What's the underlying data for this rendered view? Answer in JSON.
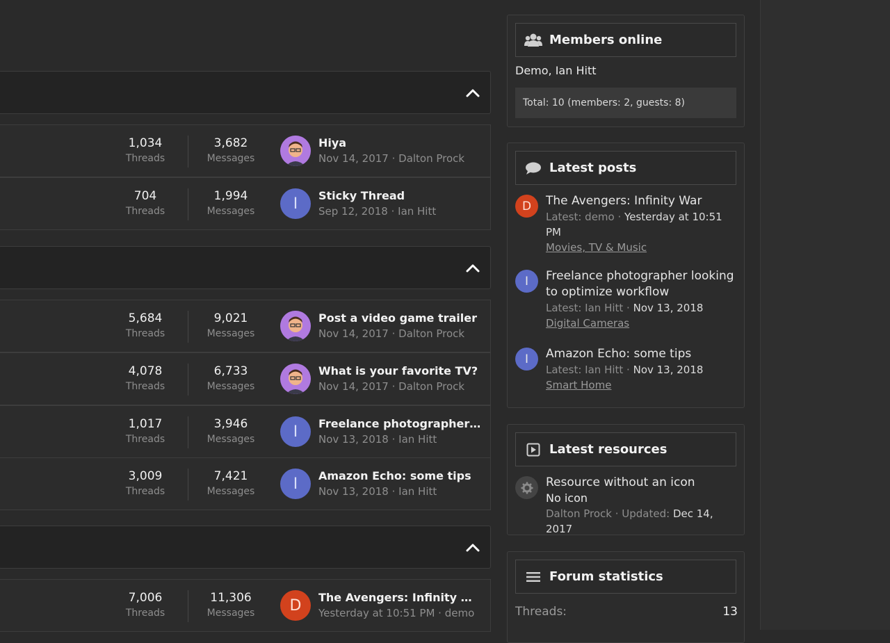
{
  "categories": [
    {
      "nodes": [
        {
          "threads_count": "1,034",
          "threads_label": "Threads",
          "messages_count": "3,682",
          "messages_label": "Messages",
          "avatar": "photo",
          "avatar_letter": "",
          "last_title": "Hiya",
          "last_meta": "Nov 14, 2017 · Dalton Prock"
        },
        {
          "threads_count": "704",
          "threads_label": "Threads",
          "messages_count": "1,994",
          "messages_label": "Messages",
          "avatar": "I",
          "avatar_letter": "I",
          "last_title": "Sticky Thread",
          "last_meta": "Sep 12, 2018 · Ian Hitt"
        }
      ]
    },
    {
      "nodes": [
        {
          "threads_count": "5,684",
          "threads_label": "Threads",
          "messages_count": "9,021",
          "messages_label": "Messages",
          "avatar": "photo",
          "avatar_letter": "",
          "last_title": "Post a video game trailer",
          "last_meta": "Nov 14, 2017 · Dalton Prock"
        },
        {
          "threads_count": "4,078",
          "threads_label": "Threads",
          "messages_count": "6,733",
          "messages_label": "Messages",
          "avatar": "photo",
          "avatar_letter": "",
          "last_title": "What is your favorite TV?",
          "last_meta": "Nov 14, 2017 · Dalton Prock"
        },
        {
          "threads_count": "1,017",
          "threads_label": "Threads",
          "messages_count": "3,946",
          "messages_label": "Messages",
          "avatar": "I",
          "avatar_letter": "I",
          "last_title": "Freelance photographer lo...",
          "last_meta": "Nov 13, 2018 · Ian Hitt"
        },
        {
          "threads_count": "3,009",
          "threads_label": "Threads",
          "messages_count": "7,421",
          "messages_label": "Messages",
          "avatar": "I",
          "avatar_letter": "I",
          "last_title": "Amazon Echo: some tips",
          "last_meta": "Nov 13, 2018 · Ian Hitt"
        }
      ]
    },
    {
      "nodes": [
        {
          "threads_count": "7,006",
          "threads_label": "Threads",
          "messages_count": "11,306",
          "messages_label": "Messages",
          "avatar": "D",
          "avatar_letter": "D",
          "last_title": "The Avengers: Infinity War",
          "last_meta": "Yesterday at 10:51 PM · demo"
        }
      ]
    }
  ],
  "collapse_icon": "chevron-up-icon",
  "sidebar": {
    "members_online": {
      "title": "Members online",
      "icon": "users-icon",
      "names": "Demo, Ian Hitt",
      "total": "Total: 10 (members: 2, guests: 8)"
    },
    "latest_posts": {
      "title": "Latest posts",
      "icon": "comment-icon",
      "items": [
        {
          "avatar_letter": "D",
          "title_line1": "The Avengers: Infinity War",
          "title_line2": "",
          "latest_prefix": "Latest: demo · ",
          "latest_date": "Yesterday at 10:51",
          "latest_date2": "PM",
          "forum": "Movies, TV & Music"
        },
        {
          "avatar_letter": "I",
          "title_line1": "Freelance photographer looking",
          "title_line2": "to optimize workflow",
          "latest_prefix": "Latest: Ian Hitt · ",
          "latest_date": "Nov 13, 2018",
          "latest_date2": "",
          "forum": "Digital Cameras"
        },
        {
          "avatar_letter": "I",
          "title_line1": "Amazon Echo: some tips",
          "title_line2": "",
          "latest_prefix": "Latest: Ian Hitt · ",
          "latest_date": "Nov 13, 2018",
          "latest_date2": "",
          "forum": "Smart Home"
        }
      ]
    },
    "latest_resources": {
      "title": "Latest resources",
      "icon": "play-square-icon",
      "item": {
        "icon": "gear-icon",
        "title": "Resource without an icon",
        "subtitle": "No icon",
        "meta_prefix": "Dalton Prock · Updated: ",
        "meta_date": "Dec 14, 2017"
      }
    },
    "forum_statistics": {
      "title": "Forum statistics",
      "icon": "list-icon",
      "rows": [
        {
          "label": "Threads:",
          "value": "13"
        }
      ]
    }
  },
  "colors": {
    "avatar_i": "#5c6bc7",
    "avatar_d": "#d2421d",
    "accent_bg": "#232323"
  }
}
